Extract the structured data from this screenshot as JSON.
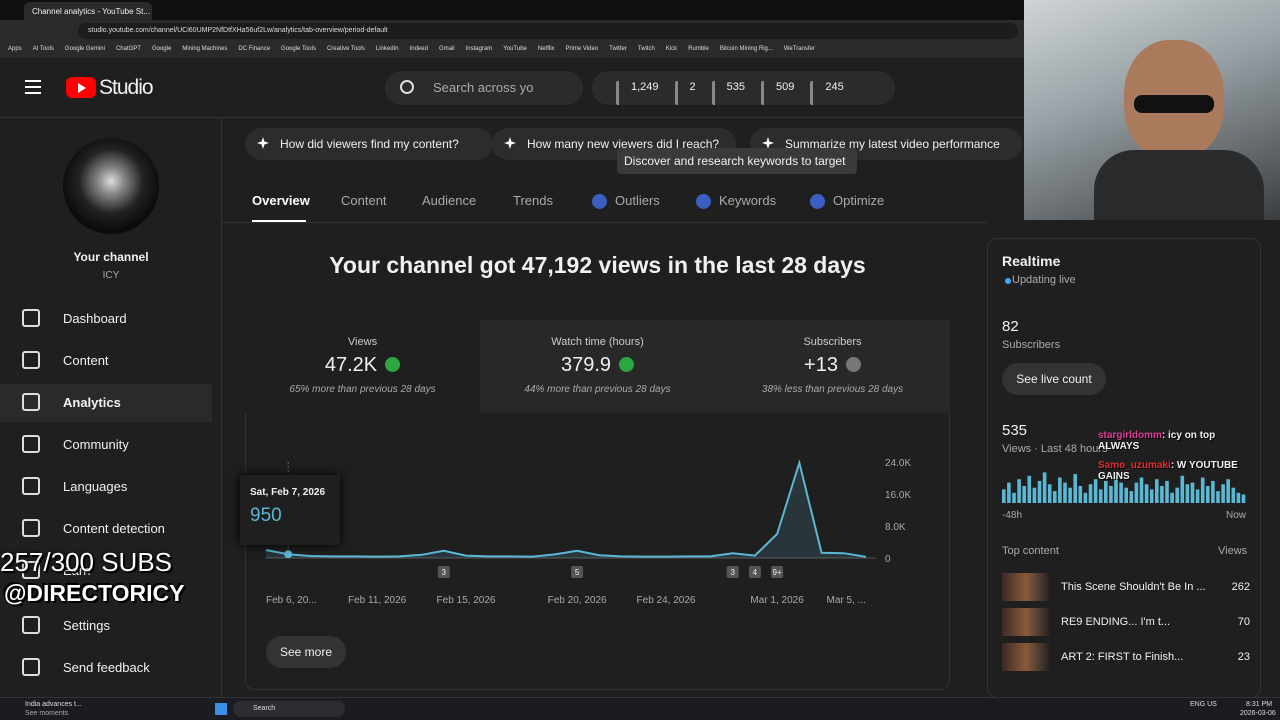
{
  "browser": {
    "tab_title": "Channel analytics - YouTube St...",
    "url": "studio.youtube.com/channel/UCi60UMP2NfDtfXHa56uf2Lw/analytics/tab-overview/period-default",
    "bookmarks": [
      "Apps",
      "AI Tools",
      "Google Gemini",
      "ChatGPT",
      "Google",
      "Mining Machines",
      "DC Finance",
      "Google Tools",
      "Creative Tools",
      "LinkedIn",
      "Indeed",
      "Gmail",
      "Instagram",
      "YouTube",
      "Netflix",
      "Prime Video",
      "Twitter",
      "Twitch",
      "Kick",
      "Rumble",
      "Bitcoin Mining Rig...",
      "WeTransfer"
    ]
  },
  "header": {
    "logo": "Studio",
    "search_placeholder": "Search across yo",
    "stats": [
      "1,249",
      "2",
      "535",
      "509",
      "245"
    ]
  },
  "sidebar": {
    "channel_name": "Your channel",
    "handle": "ICY",
    "nav": [
      "Dashboard",
      "Content",
      "Analytics",
      "Community",
      "Languages",
      "Content detection",
      "Earn",
      "Settings",
      "Send feedback"
    ]
  },
  "prompts": [
    "How did viewers find my content?",
    "How many new viewers did I reach?",
    "Summarize my latest video performance"
  ],
  "tooltip_hint": "Discover and research keywords to target",
  "tabs": [
    "Overview",
    "Content",
    "Audience",
    "Trends",
    "Outliers",
    "Keywords",
    "Optimize"
  ],
  "headline": "Your channel got 47,192 views in the last 28 days",
  "metrics": [
    {
      "label": "Views",
      "value": "47.2K",
      "note": "65% more than previous 28 days"
    },
    {
      "label": "Watch time (hours)",
      "value": "379.9",
      "note": "44% more than previous 28 days"
    },
    {
      "label": "Subscribers",
      "value": "+13",
      "note": "38% less than previous 28 days"
    }
  ],
  "chart_data": {
    "type": "line",
    "categories": [
      "Feb 6, 20...",
      null,
      null,
      null,
      null,
      "Feb 11, 2026",
      null,
      null,
      null,
      "Feb 15, 2026",
      null,
      null,
      null,
      null,
      "Feb 20, 2026",
      null,
      null,
      null,
      "Feb 24, 2026",
      null,
      null,
      null,
      null,
      "Mar 1, 2026",
      null,
      null,
      null,
      "Mar 5, ..."
    ],
    "values": [
      2000,
      950,
      500,
      400,
      400,
      350,
      400,
      800,
      1800,
      600,
      400,
      400,
      350,
      900,
      1800,
      700,
      400,
      350,
      350,
      400,
      400,
      1200,
      600,
      6000,
      23800,
      1300,
      1200,
      300
    ],
    "color": "#5bb8d4",
    "ylim": [
      0,
      24000
    ],
    "yticks": [
      0,
      {
        "value": 8000,
        "label": "8.0K"
      },
      {
        "value": 16000,
        "label": "16.0K"
      },
      {
        "value": 24000,
        "label": "24.0K"
      }
    ],
    "tooltip": {
      "date": "Sat, Feb 7, 2026",
      "value": "950"
    },
    "upload_markers": [
      "3",
      "5",
      "3",
      "4",
      "9+"
    ]
  },
  "see_more": "See more",
  "realtime": {
    "title": "Realtime",
    "status": "Updating live",
    "subscribers": "82",
    "subscribers_label": "Subscribers",
    "button": "See live count",
    "views": "535",
    "views_label": "Views · Last 48 hours",
    "hourly_views": [
      8,
      12,
      6,
      14,
      10,
      16,
      9,
      13,
      18,
      11,
      7,
      15,
      12,
      9,
      17,
      10,
      6,
      11,
      14,
      8,
      13,
      10,
      16,
      12,
      9,
      7,
      12,
      15,
      11,
      8,
      14,
      10,
      13,
      6,
      9,
      16,
      11,
      12,
      8,
      15,
      10,
      13,
      7,
      11,
      14,
      9,
      6,
      5
    ],
    "axis_start": "-48h",
    "axis_end": "Now",
    "top_content": "Top content",
    "top_views": "Views",
    "items": [
      {
        "title": "This Scene Shouldn't Be In ...",
        "views": "262"
      },
      {
        "title": "RE9 ENDING... I'm t...",
        "views": "70"
      },
      {
        "title": "ART 2: FIRST to Finish...",
        "views": "23"
      }
    ]
  },
  "overlay": {
    "subs_goal": "257/300 SUBS",
    "handle": "@DIRECTORICY",
    "chat": [
      {
        "user": "stargirldomm",
        "text": ": icy on top ALWAYS"
      },
      {
        "user": "Samo_uzumaki",
        "text": ": W YOUTUBE GAINS"
      }
    ]
  },
  "taskbar": {
    "news": "India advances t...",
    "news_sub": "See moments",
    "search": "Search",
    "lang": "ENG US",
    "time": "8:31 PM",
    "date": "2026-03-06"
  }
}
